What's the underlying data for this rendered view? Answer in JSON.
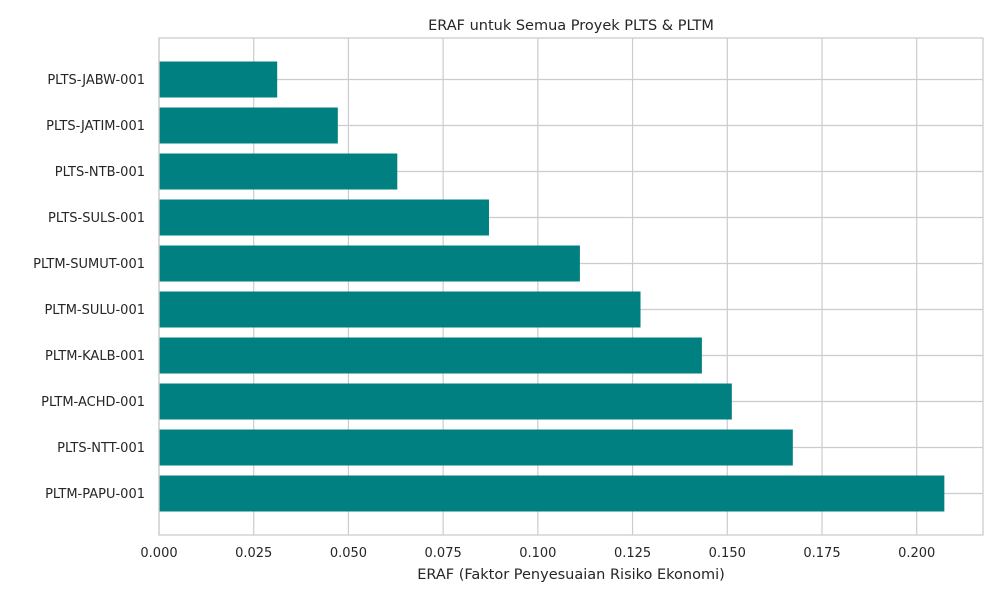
{
  "chart_data": {
    "type": "bar",
    "orientation": "horizontal",
    "title": "ERAF untuk Semua Proyek PLTS & PLTM",
    "xlabel": "ERAF (Faktor Penyesuaian Risiko Ekonomi)",
    "ylabel": "",
    "xlim": [
      0.0,
      0.2175
    ],
    "xticks": [
      0.0,
      0.025,
      0.05,
      0.075,
      0.1,
      0.125,
      0.15,
      0.175,
      0.2
    ],
    "xtick_labels": [
      "0.000",
      "0.025",
      "0.050",
      "0.075",
      "0.100",
      "0.125",
      "0.150",
      "0.175",
      "0.200"
    ],
    "categories": [
      "PLTS-JABW-001",
      "PLTS-JATIM-001",
      "PLTS-NTB-001",
      "PLTS-SULS-001",
      "PLTM-SUMUT-001",
      "PLTM-SULU-001",
      "PLTM-KALB-001",
      "PLTM-ACHD-001",
      "PLTS-NTT-001",
      "PLTM-PAPU-001"
    ],
    "values": [
      0.0312,
      0.0472,
      0.0629,
      0.0871,
      0.1111,
      0.1271,
      0.1433,
      0.1512,
      0.1673,
      0.2073
    ],
    "grid": true,
    "bar_color": "#008080"
  }
}
